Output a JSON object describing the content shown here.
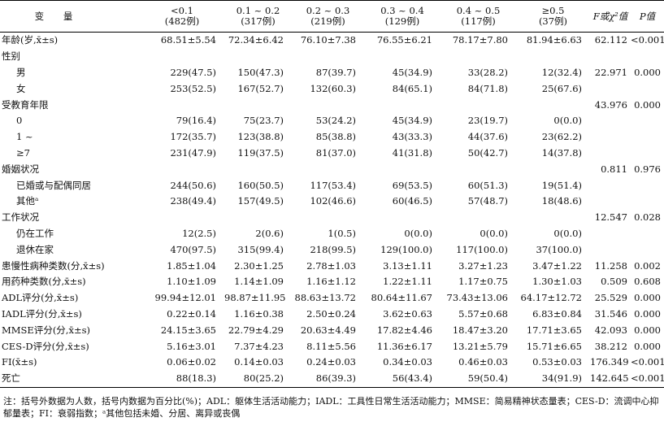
{
  "headers": {
    "variable": "变 量",
    "groups": [
      {
        "range": "<0.1",
        "n": "(482例)"
      },
      {
        "range": "0.1 ~ 0.2",
        "n": "(317例)"
      },
      {
        "range": "0.2 ~ 0.3",
        "n": "(219例)"
      },
      {
        "range": "0.3 ~ 0.4",
        "n": "(129例)"
      },
      {
        "range": "0.4 ~ 0.5",
        "n": "(117例)"
      },
      {
        "range": "≥0.5",
        "n": "(37例)"
      }
    ],
    "stat": "F或χ²值",
    "p": "P值"
  },
  "rows": [
    {
      "label": "年龄(岁,x̄±s)",
      "indent": false,
      "cells": [
        "68.51±5.54",
        "72.34±6.42",
        "76.10±7.38",
        "76.55±6.21",
        "78.17±7.80",
        "81.94±6.63"
      ],
      "stat": "62.112",
      "p": "<0.001"
    },
    {
      "label": "性别",
      "indent": false,
      "cells": [
        "",
        "",
        "",
        "",
        "",
        ""
      ],
      "stat": "",
      "p": ""
    },
    {
      "label": "男",
      "indent": true,
      "cells": [
        "229(47.5)",
        "150(47.3)",
        "87(39.7)",
        "45(34.9)",
        "33(28.2)",
        "12(32.4)"
      ],
      "stat": "22.971",
      "p": "0.000"
    },
    {
      "label": "女",
      "indent": true,
      "cells": [
        "253(52.5)",
        "167(52.7)",
        "132(60.3)",
        "84(65.1)",
        "84(71.8)",
        "25(67.6)"
      ],
      "stat": "",
      "p": ""
    },
    {
      "label": "受教育年限",
      "indent": false,
      "cells": [
        "",
        "",
        "",
        "",
        "",
        ""
      ],
      "stat": "43.976",
      "p": "0.000"
    },
    {
      "label": "0",
      "indent": true,
      "cells": [
        "79(16.4)",
        "75(23.7)",
        "53(24.2)",
        "45(34.9)",
        "23(19.7)",
        "0(0.0)"
      ],
      "stat": "",
      "p": ""
    },
    {
      "label": "1 ~",
      "indent": true,
      "cells": [
        "172(35.7)",
        "123(38.8)",
        "85(38.8)",
        "43(33.3)",
        "44(37.6)",
        "23(62.2)"
      ],
      "stat": "",
      "p": ""
    },
    {
      "label": "≥7",
      "indent": true,
      "cells": [
        "231(47.9)",
        "119(37.5)",
        "81(37.0)",
        "41(31.8)",
        "50(42.7)",
        "14(37.8)"
      ],
      "stat": "",
      "p": ""
    },
    {
      "label": "婚姻状况",
      "indent": false,
      "cells": [
        "",
        "",
        "",
        "",
        "",
        ""
      ],
      "stat": "0.811",
      "p": "0.976"
    },
    {
      "label": "已婚或与配偶同居",
      "indent": true,
      "cells": [
        "244(50.6)",
        "160(50.5)",
        "117(53.4)",
        "69(53.5)",
        "60(51.3)",
        "19(51.4)"
      ],
      "stat": "",
      "p": ""
    },
    {
      "label": "其他ᵃ",
      "indent": true,
      "cells": [
        "238(49.4)",
        "157(49.5)",
        "102(46.6)",
        "60(46.5)",
        "57(48.7)",
        "18(48.6)"
      ],
      "stat": "",
      "p": ""
    },
    {
      "label": "工作状况",
      "indent": false,
      "cells": [
        "",
        "",
        "",
        "",
        "",
        ""
      ],
      "stat": "12.547",
      "p": "0.028"
    },
    {
      "label": "仍在工作",
      "indent": true,
      "cells": [
        "12(2.5)",
        "2(0.6)",
        "1(0.5)",
        "0(0.0)",
        "0(0.0)",
        "0(0.0)"
      ],
      "stat": "",
      "p": ""
    },
    {
      "label": "退休在家",
      "indent": true,
      "cells": [
        "470(97.5)",
        "315(99.4)",
        "218(99.5)",
        "129(100.0)",
        "117(100.0)",
        "37(100.0)"
      ],
      "stat": "",
      "p": ""
    },
    {
      "label": "患慢性病种类数(分,x̄±s)",
      "indent": false,
      "cells": [
        "1.85±1.04",
        "2.30±1.25",
        "2.78±1.03",
        "3.13±1.11",
        "3.27±1.23",
        "3.47±1.22"
      ],
      "stat": "11.258",
      "p": "0.002"
    },
    {
      "label": "用药种类数(分,x̄±s)",
      "indent": false,
      "cells": [
        "1.10±1.09",
        "1.14±1.09",
        "1.16±1.12",
        "1.22±1.11",
        "1.17±0.75",
        "1.30±1.03"
      ],
      "stat": "0.509",
      "p": "0.608"
    },
    {
      "label": "ADL评分(分,x̄±s)",
      "indent": false,
      "cells": [
        "99.94±12.01",
        "98.87±11.95",
        "88.63±13.72",
        "80.64±11.67",
        "73.43±13.06",
        "64.17±12.72"
      ],
      "stat": "25.529",
      "p": "0.000"
    },
    {
      "label": "IADL评分(分,x̄±s)",
      "indent": false,
      "cells": [
        "0.22±0.14",
        "1.16±0.38",
        "2.50±0.24",
        "3.62±0.63",
        "5.57±0.68",
        "6.83±0.84"
      ],
      "stat": "31.546",
      "p": "0.000"
    },
    {
      "label": "MMSE评分(分,x̄±s)",
      "indent": false,
      "cells": [
        "24.15±3.65",
        "22.79±4.29",
        "20.63±4.49",
        "17.82±4.46",
        "18.47±3.20",
        "17.71±3.65"
      ],
      "stat": "42.093",
      "p": "0.000"
    },
    {
      "label": "CES-D评分(分,x̄±s)",
      "indent": false,
      "cells": [
        "5.16±3.01",
        "7.37±4.23",
        "8.11±5.56",
        "11.36±6.17",
        "13.21±5.79",
        "15.71±6.65"
      ],
      "stat": "38.212",
      "p": "0.000"
    },
    {
      "label": "FI(x̄±s)",
      "indent": false,
      "cells": [
        "0.06±0.02",
        "0.14±0.03",
        "0.24±0.03",
        "0.34±0.03",
        "0.46±0.03",
        "0.53±0.03"
      ],
      "stat": "176.349",
      "p": "<0.001"
    },
    {
      "label": "死亡",
      "indent": false,
      "cells": [
        "88(18.3)",
        "80(25.2)",
        "86(39.3)",
        "56(43.4)",
        "59(50.4)",
        "34(91.9)"
      ],
      "stat": "142.645",
      "p": "<0.001"
    }
  ],
  "note": "注：括号外数据为人数，括号内数据为百分比(%)；ADL：躯体生活活动能力；IADL：工具性日常生活活动能力；MMSE：简易精神状态量表；CES-D：流调中心抑郁量表；FI：衰弱指数；ᵃ其他包括未婚、分居、离异或丧偶"
}
